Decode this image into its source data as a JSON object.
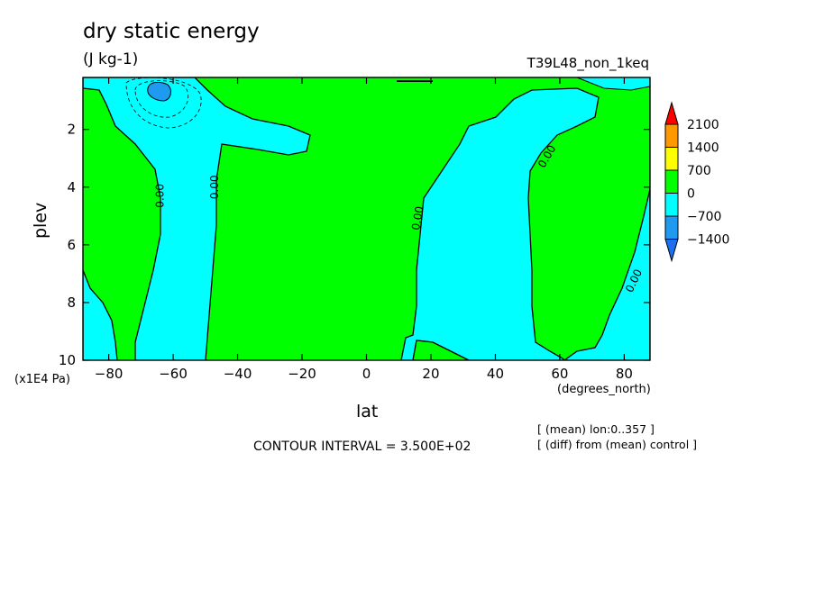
{
  "chart_data": {
    "type": "heatmap",
    "title": "dry static energy",
    "units": "(J kg-1)",
    "run_label": "T39L48_non_1keq",
    "xlabel": "lat",
    "x_unit": "(degrees_north)",
    "ylabel": "plev",
    "y_unit": "(x1E4 Pa)",
    "x_ticks": [
      -80,
      -60,
      -40,
      -20,
      0,
      20,
      40,
      60,
      80
    ],
    "x_tick_labels": [
      "−80",
      "−60",
      "−40",
      "−20",
      "0",
      "20",
      "40",
      "60",
      "80"
    ],
    "y_ticks": [
      2,
      4,
      6,
      8,
      10
    ],
    "y_tick_labels": [
      "2",
      "4",
      "6",
      "8",
      "10"
    ],
    "xlim": [
      -88,
      88
    ],
    "ylim": [
      10,
      0.2
    ],
    "contour_interval_text": "CONTOUR INTERVAL = 3.500E+02",
    "contour_labels": [
      "0.00",
      "0.00",
      "0.00",
      "0.00",
      "0.00"
    ],
    "notes": [
      "[ (mean) lon:0..357 ]",
      "[ (diff) from (mean) control ]"
    ],
    "colorbar": {
      "levels": [
        -1400,
        -700,
        0,
        700,
        1400,
        2100
      ],
      "labels": [
        "2100",
        "1400",
        "700",
        "0",
        "−700",
        "−1400"
      ],
      "colors": {
        "below_-1400": "#1e6ff0",
        "-1400_-700": "#1e9bf0",
        "-700_0": "#00ffff",
        "0_700": "#00ff00",
        "700_1400": "#ffff00",
        "1400_2100": "#ff9900",
        "above_2100": "#ff0000"
      }
    }
  }
}
